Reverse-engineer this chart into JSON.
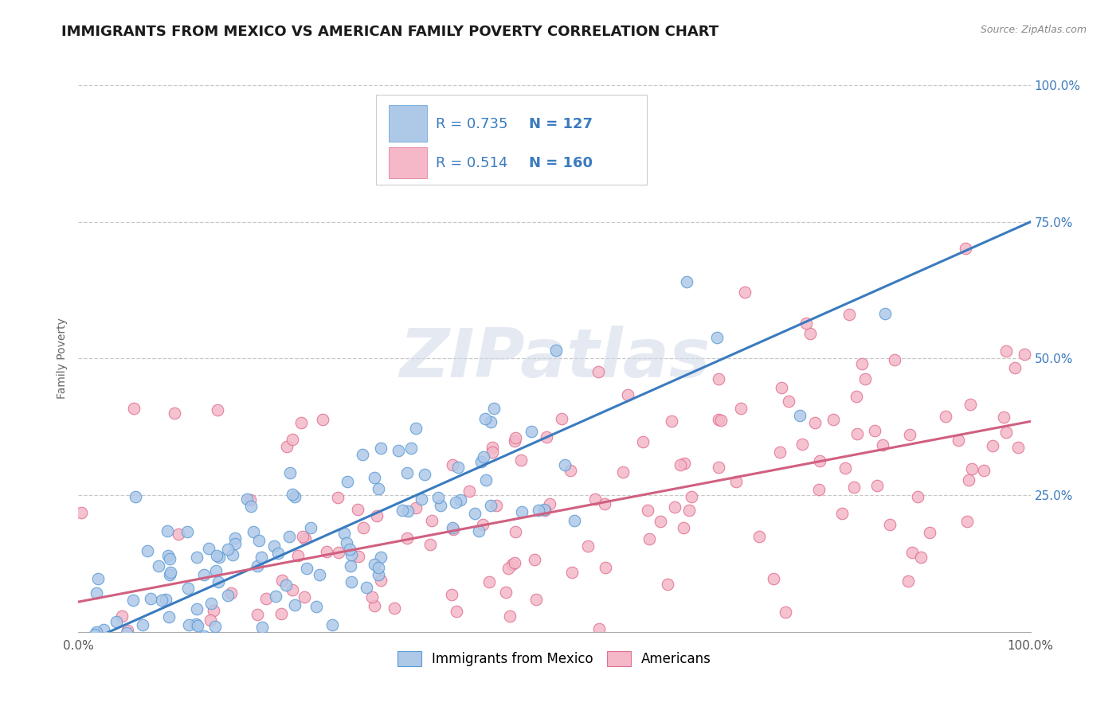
{
  "title": "IMMIGRANTS FROM MEXICO VS AMERICAN FAMILY POVERTY CORRELATION CHART",
  "source": "Source: ZipAtlas.com",
  "ylabel": "Family Poverty",
  "watermark": "ZIPatlas",
  "legend_blue_R": "0.735",
  "legend_blue_N": "127",
  "legend_pink_R": "0.514",
  "legend_pink_N": "160",
  "blue_fill": "#aec8e8",
  "blue_edge": "#5b9bd5",
  "blue_line": "#3a7bbf",
  "pink_fill": "#f4b8c8",
  "pink_edge": "#e07090",
  "pink_line": "#d06080",
  "legend_color": "#3a7bbf",
  "grid_color": "#c8c8c8",
  "background_color": "#ffffff",
  "xlim": [
    0.0,
    1.0
  ],
  "ylim": [
    0.0,
    1.0
  ],
  "blue_intercept": -0.025,
  "blue_slope": 0.775,
  "pink_intercept": 0.055,
  "pink_slope": 0.33,
  "title_fontsize": 13,
  "label_fontsize": 10,
  "tick_fontsize": 11,
  "legend_fontsize": 13,
  "figsize": [
    14.06,
    8.92
  ],
  "dpi": 100
}
